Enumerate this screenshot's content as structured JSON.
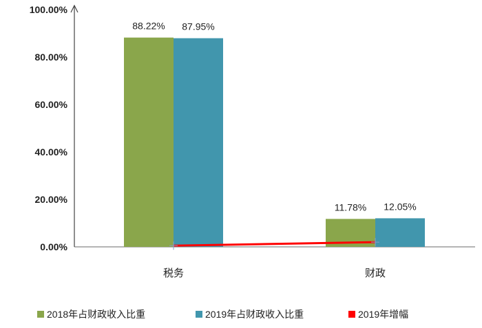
{
  "chart_data": {
    "type": "bar",
    "categories": [
      "税务",
      "财政"
    ],
    "series": [
      {
        "name": "2018年占财政收入比重",
        "type": "bar",
        "color": "#8aa64b",
        "values": [
          88.22,
          11.78
        ],
        "labels": [
          "88.22%",
          "11.78%"
        ]
      },
      {
        "name": "2019年占财政收入比重",
        "type": "bar",
        "color": "#4196ad",
        "values": [
          87.95,
          12.05
        ],
        "labels": [
          "87.95%",
          "12.05%"
        ]
      },
      {
        "name": "2019年增幅",
        "type": "line",
        "color": "#ff0000",
        "values": [
          0.5,
          2.0
        ]
      }
    ],
    "yticks": [
      "0.00%",
      "20.00%",
      "40.00%",
      "60.00%",
      "80.00%",
      "100.00%"
    ],
    "ylim": [
      0,
      100
    ],
    "legend": "bottom",
    "grid": false
  }
}
